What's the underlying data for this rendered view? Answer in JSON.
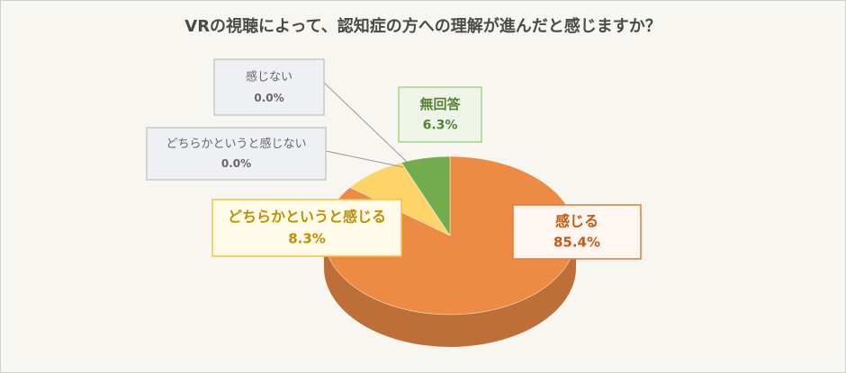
{
  "chart_data": {
    "type": "pie",
    "title": "VRの視聴によって、認知症の方への理解が進んだと感じますか？",
    "categories": [
      "感じる",
      "どちらかというと感じる",
      "どちらかというと感じない",
      "感じない",
      "無回答"
    ],
    "values": [
      85.4,
      8.3,
      0.0,
      0.0,
      6.3
    ],
    "value_labels": [
      "85.4%",
      "8.3%",
      "0.0%",
      "0.0%",
      "6.3%"
    ],
    "colors": [
      "#ed8b45",
      "#fdd36a",
      "#bfbfbf",
      "#a5a5a5",
      "#72ac4d"
    ]
  }
}
